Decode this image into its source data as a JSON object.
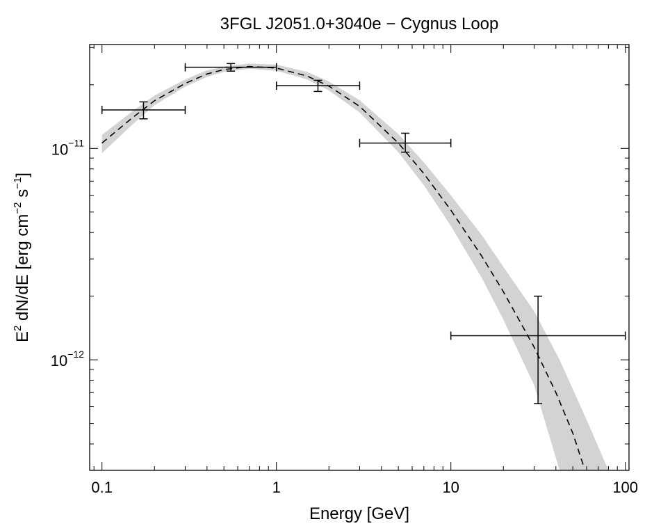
{
  "chart_data": {
    "type": "scatter",
    "title": "3FGL J2051.0+3040e − Cygnus Loop",
    "xlabel": "Energy [GeV]",
    "ylabel_base": "E",
    "ylabel_base_sup": "2",
    "ylabel_mid": " dN/dE [erg cm",
    "ylabel_mid_sup": "−2",
    "ylabel_s": " s",
    "ylabel_s_sup": "−1",
    "ylabel_end": "]",
    "xscale": "log",
    "yscale": "log",
    "xlim": [
      0.085,
      105
    ],
    "ylim": [
      3e-13,
      3.1e-11
    ],
    "xticks": [
      {
        "value": 0.1,
        "label": "0.1"
      },
      {
        "value": 1,
        "label": "1"
      },
      {
        "value": 10,
        "label": "10"
      },
      {
        "value": 100,
        "label": "100"
      }
    ],
    "yticks": [
      {
        "value": 1e-11,
        "base": "10",
        "exp": "−11"
      },
      {
        "value": 1e-12,
        "base": "10",
        "exp": "−12"
      }
    ],
    "grid": false,
    "legend": "none",
    "points": [
      {
        "x": 0.173,
        "y": 1.52e-11,
        "x_lo": 0.1,
        "x_hi": 0.3,
        "y_lo": 1.38e-11,
        "y_hi": 1.66e-11
      },
      {
        "x": 0.548,
        "y": 2.42e-11,
        "x_lo": 0.3,
        "x_hi": 1.0,
        "y_lo": 2.32e-11,
        "y_hi": 2.52e-11
      },
      {
        "x": 1.73,
        "y": 1.98e-11,
        "x_lo": 1.0,
        "x_hi": 3.0,
        "y_lo": 1.86e-11,
        "y_hi": 2.1e-11
      },
      {
        "x": 5.48,
        "y": 1.06e-11,
        "x_lo": 3.0,
        "x_hi": 10.0,
        "y_lo": 9.6e-12,
        "y_hi": 1.18e-11
      },
      {
        "x": 31.6,
        "y": 1.3e-12,
        "x_lo": 10.0,
        "x_hi": 100.0,
        "y_lo": 6.2e-13,
        "y_hi": 2e-12
      }
    ],
    "model": {
      "style": "dashed",
      "x": [
        0.1,
        0.15,
        0.2,
        0.3,
        0.4,
        0.5,
        0.7,
        1.0,
        1.5,
        2.0,
        3.0,
        5.0,
        7.0,
        10.0,
        15.0,
        20.0,
        30.0,
        40.0,
        50.0,
        58.0
      ],
      "y": [
        1.06e-11,
        1.4e-11,
        1.68e-11,
        2.03e-11,
        2.25e-11,
        2.36e-11,
        2.44e-11,
        2.4e-11,
        2.2e-11,
        1.97e-11,
        1.58e-11,
        1.06e-11,
        7.6e-12,
        5.1e-12,
        3.1e-12,
        2.1e-12,
        1.15e-12,
        7e-13,
        4.5e-13,
        3.1e-13
      ]
    },
    "band": {
      "color": "#d3d3d3",
      "x": [
        0.1,
        0.15,
        0.2,
        0.3,
        0.4,
        0.5,
        0.7,
        1.0,
        1.5,
        2.0,
        3.0,
        5.0,
        7.0,
        10.0,
        15.0,
        20.0,
        30.0,
        42.0,
        60.0,
        80.0
      ],
      "y_lo": [
        9.5e-12,
        1.3e-11,
        1.6e-11,
        1.96e-11,
        2.18e-11,
        2.3e-11,
        2.38e-11,
        2.33e-11,
        2.12e-11,
        1.88e-11,
        1.48e-11,
        9.6e-12,
        6.7e-12,
        4.3e-12,
        2.45e-12,
        1.55e-12,
        7.6e-13,
        3e-13,
        3e-13,
        3e-13
      ],
      "y_hi": [
        1.16e-11,
        1.5e-11,
        1.78e-11,
        2.12e-11,
        2.34e-11,
        2.44e-11,
        2.52e-11,
        2.49e-11,
        2.3e-11,
        2.07e-11,
        1.69e-11,
        1.17e-11,
        8.6e-12,
        6e-12,
        3.9e-12,
        2.75e-12,
        1.7e-12,
        1e-12,
        5.2e-13,
        3e-13
      ]
    }
  }
}
